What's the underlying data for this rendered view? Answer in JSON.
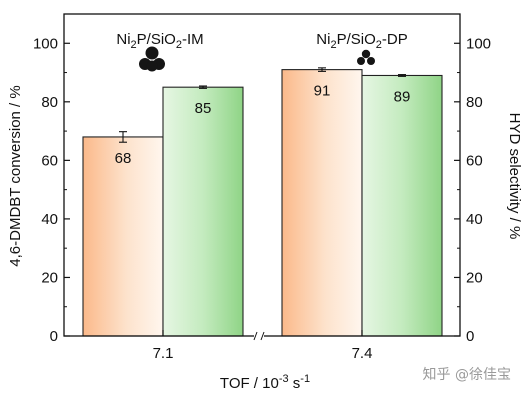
{
  "chart_data": {
    "type": "bar",
    "categories": [
      "7.1",
      "7.4"
    ],
    "xlabel_main": "TOF / 10",
    "xlabel_exp": "-3",
    "xlabel_unit": " s",
    "xlabel_unit_exp": "-1",
    "ylabel_left": "4,6-DMDBT conversion / %",
    "ylabel_right": "HYD selectivity / %",
    "ylim": [
      0,
      110
    ],
    "yticks": [
      "0",
      "20",
      "40",
      "60",
      "80",
      "100"
    ],
    "series": [
      {
        "values": [
          68,
          91
        ],
        "errors": [
          1.8,
          0.6
        ],
        "labels": [
          "68",
          "91"
        ],
        "color": "#f9c9a0"
      },
      {
        "values": [
          85,
          89
        ],
        "errors": [
          0.4,
          0.3
        ],
        "labels": [
          "85",
          "89"
        ],
        "color": "#a6dba0"
      }
    ],
    "annotations": [
      {
        "p1": "Ni",
        "s1": "2",
        "p2": "P/SiO",
        "s2": "2",
        "p3": "-IM",
        "category": 0,
        "icon": "large-particle-cluster-icon"
      },
      {
        "p1": "Ni",
        "s1": "2",
        "p2": "P/SiO",
        "s2": "2",
        "p3": "-DP",
        "category": 1,
        "icon": "small-particle-cluster-icon"
      }
    ],
    "grid": false
  },
  "watermark": "知乎 @徐佳宝"
}
